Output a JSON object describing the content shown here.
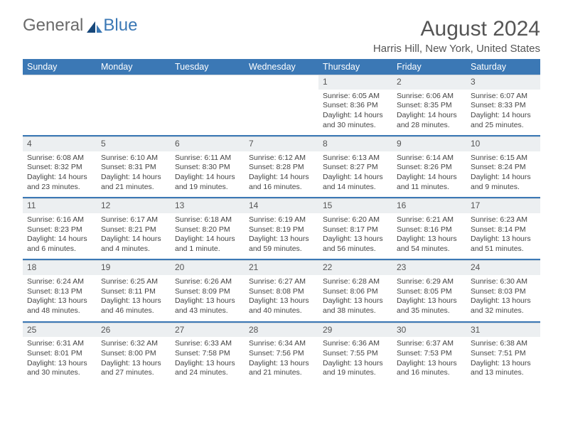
{
  "brand": {
    "word1": "General",
    "word2": "Blue"
  },
  "title": "August 2024",
  "location": "Harris Hill, New York, United States",
  "colors": {
    "header_bg": "#3b78b5",
    "header_text": "#ffffff",
    "daynum_bg": "#eceff1",
    "separator": "#3b78b5",
    "body_text": "#444444",
    "page_bg": "#ffffff"
  },
  "typography": {
    "title_fontsize": 30,
    "location_fontsize": 15,
    "dayname_fontsize": 12.5,
    "cell_fontsize": 10.5,
    "font_family": "Arial"
  },
  "day_names": [
    "Sunday",
    "Monday",
    "Tuesday",
    "Wednesday",
    "Thursday",
    "Friday",
    "Saturday"
  ],
  "weeks": [
    [
      null,
      null,
      null,
      null,
      {
        "n": "1",
        "sr": "6:05 AM",
        "ss": "8:36 PM",
        "dl": "14 hours and 30 minutes."
      },
      {
        "n": "2",
        "sr": "6:06 AM",
        "ss": "8:35 PM",
        "dl": "14 hours and 28 minutes."
      },
      {
        "n": "3",
        "sr": "6:07 AM",
        "ss": "8:33 PM",
        "dl": "14 hours and 25 minutes."
      }
    ],
    [
      {
        "n": "4",
        "sr": "6:08 AM",
        "ss": "8:32 PM",
        "dl": "14 hours and 23 minutes."
      },
      {
        "n": "5",
        "sr": "6:10 AM",
        "ss": "8:31 PM",
        "dl": "14 hours and 21 minutes."
      },
      {
        "n": "6",
        "sr": "6:11 AM",
        "ss": "8:30 PM",
        "dl": "14 hours and 19 minutes."
      },
      {
        "n": "7",
        "sr": "6:12 AM",
        "ss": "8:28 PM",
        "dl": "14 hours and 16 minutes."
      },
      {
        "n": "8",
        "sr": "6:13 AM",
        "ss": "8:27 PM",
        "dl": "14 hours and 14 minutes."
      },
      {
        "n": "9",
        "sr": "6:14 AM",
        "ss": "8:26 PM",
        "dl": "14 hours and 11 minutes."
      },
      {
        "n": "10",
        "sr": "6:15 AM",
        "ss": "8:24 PM",
        "dl": "14 hours and 9 minutes."
      }
    ],
    [
      {
        "n": "11",
        "sr": "6:16 AM",
        "ss": "8:23 PM",
        "dl": "14 hours and 6 minutes."
      },
      {
        "n": "12",
        "sr": "6:17 AM",
        "ss": "8:21 PM",
        "dl": "14 hours and 4 minutes."
      },
      {
        "n": "13",
        "sr": "6:18 AM",
        "ss": "8:20 PM",
        "dl": "14 hours and 1 minute."
      },
      {
        "n": "14",
        "sr": "6:19 AM",
        "ss": "8:19 PM",
        "dl": "13 hours and 59 minutes."
      },
      {
        "n": "15",
        "sr": "6:20 AM",
        "ss": "8:17 PM",
        "dl": "13 hours and 56 minutes."
      },
      {
        "n": "16",
        "sr": "6:21 AM",
        "ss": "8:16 PM",
        "dl": "13 hours and 54 minutes."
      },
      {
        "n": "17",
        "sr": "6:23 AM",
        "ss": "8:14 PM",
        "dl": "13 hours and 51 minutes."
      }
    ],
    [
      {
        "n": "18",
        "sr": "6:24 AM",
        "ss": "8:13 PM",
        "dl": "13 hours and 48 minutes."
      },
      {
        "n": "19",
        "sr": "6:25 AM",
        "ss": "8:11 PM",
        "dl": "13 hours and 46 minutes."
      },
      {
        "n": "20",
        "sr": "6:26 AM",
        "ss": "8:09 PM",
        "dl": "13 hours and 43 minutes."
      },
      {
        "n": "21",
        "sr": "6:27 AM",
        "ss": "8:08 PM",
        "dl": "13 hours and 40 minutes."
      },
      {
        "n": "22",
        "sr": "6:28 AM",
        "ss": "8:06 PM",
        "dl": "13 hours and 38 minutes."
      },
      {
        "n": "23",
        "sr": "6:29 AM",
        "ss": "8:05 PM",
        "dl": "13 hours and 35 minutes."
      },
      {
        "n": "24",
        "sr": "6:30 AM",
        "ss": "8:03 PM",
        "dl": "13 hours and 32 minutes."
      }
    ],
    [
      {
        "n": "25",
        "sr": "6:31 AM",
        "ss": "8:01 PM",
        "dl": "13 hours and 30 minutes."
      },
      {
        "n": "26",
        "sr": "6:32 AM",
        "ss": "8:00 PM",
        "dl": "13 hours and 27 minutes."
      },
      {
        "n": "27",
        "sr": "6:33 AM",
        "ss": "7:58 PM",
        "dl": "13 hours and 24 minutes."
      },
      {
        "n": "28",
        "sr": "6:34 AM",
        "ss": "7:56 PM",
        "dl": "13 hours and 21 minutes."
      },
      {
        "n": "29",
        "sr": "6:36 AM",
        "ss": "7:55 PM",
        "dl": "13 hours and 19 minutes."
      },
      {
        "n": "30",
        "sr": "6:37 AM",
        "ss": "7:53 PM",
        "dl": "13 hours and 16 minutes."
      },
      {
        "n": "31",
        "sr": "6:38 AM",
        "ss": "7:51 PM",
        "dl": "13 hours and 13 minutes."
      }
    ]
  ],
  "labels": {
    "sunrise": "Sunrise: ",
    "sunset": "Sunset: ",
    "daylight": "Daylight: "
  }
}
